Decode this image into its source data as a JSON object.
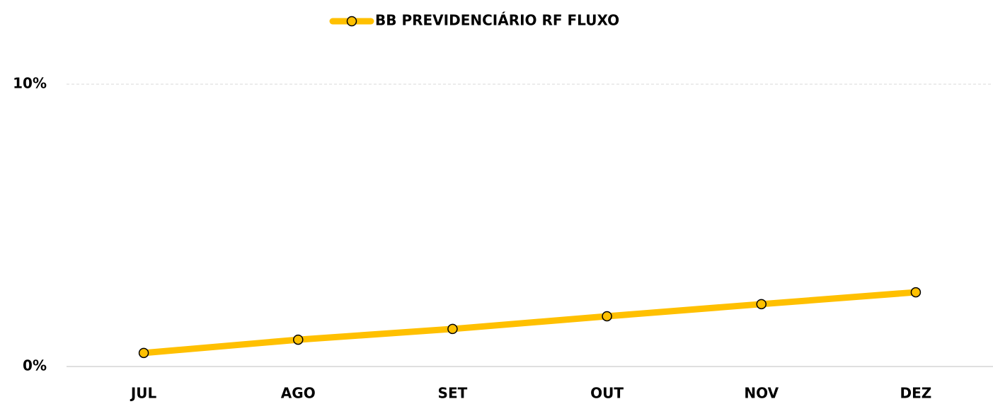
{
  "chart_data": {
    "type": "line",
    "categories": [
      "JUL",
      "AGO",
      "SET",
      "OUT",
      "NOV",
      "DEZ"
    ],
    "series": [
      {
        "name": "BB PREVIDENCIÁRIO RF FLUXO",
        "color": "#FFC000",
        "values": [
          0.48,
          0.95,
          1.33,
          1.78,
          2.21,
          2.63
        ]
      }
    ],
    "ylim": [
      0,
      10
    ],
    "yticks": [
      {
        "value": 0,
        "label": "0%"
      },
      {
        "value": 10,
        "label": "10%"
      }
    ],
    "grid": true,
    "legend": "top"
  }
}
